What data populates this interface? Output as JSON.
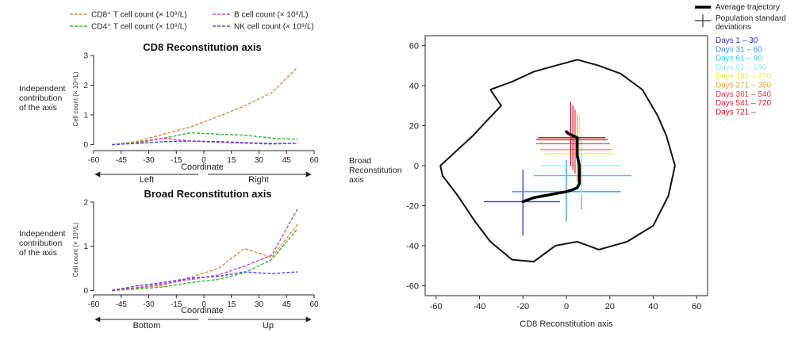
{
  "legend_top": [
    {
      "label": "CD8⁺ T cell count (× 10⁹/L)",
      "color": "#F08A3C"
    },
    {
      "label": "B cell count (× 10⁹/L)",
      "color": "#E040A0"
    },
    {
      "label": "CD4⁺ T cell count (× 10⁹/L)",
      "color": "#33BB33"
    },
    {
      "label": "NK cell count (× 10⁹/L)",
      "color": "#4A4AE0"
    }
  ],
  "side_label": "Independent contribution of the axis",
  "chart_data": [
    {
      "type": "line",
      "title": "CD8  Reconstitution axis",
      "xlabel": "Coordinate",
      "ylabel": "Cell count (× 10⁹/L)",
      "xlim": [
        -60,
        60
      ],
      "ylim": [
        -0.2,
        3
      ],
      "xticks": [
        -60,
        -45,
        -30,
        -15,
        0,
        15,
        30,
        45,
        60
      ],
      "yticks": [
        0,
        1,
        2,
        3
      ],
      "x": [
        -50,
        -37,
        -22,
        -7,
        8,
        22,
        37,
        51
      ],
      "series": [
        {
          "name": "CD8⁺ T cell count (× 10⁹/L)",
          "color": "#F08A3C",
          "values": [
            0.0,
            0.1,
            0.35,
            0.6,
            0.95,
            1.3,
            1.75,
            2.6
          ]
        },
        {
          "name": "CD4⁺ T cell count (× 10⁹/L)",
          "color": "#33BB33",
          "values": [
            0.0,
            0.08,
            0.22,
            0.4,
            0.35,
            0.32,
            0.22,
            0.18
          ]
        },
        {
          "name": "B cell count (× 10⁹/L)",
          "color": "#E040A0",
          "values": [
            0.0,
            0.05,
            0.22,
            0.12,
            0.08,
            0.05,
            0.02,
            0.05
          ]
        },
        {
          "name": "NK cell count (× 10⁹/L)",
          "color": "#4A4AE0",
          "values": [
            0.0,
            0.04,
            0.1,
            0.12,
            0.1,
            0.07,
            0.04,
            0.05
          ]
        }
      ],
      "direction_left": "Left",
      "direction_right": "Right"
    },
    {
      "type": "line",
      "title": "Broad Reconstitution axis",
      "xlabel": "Coordinate",
      "ylabel": "Cell count (× 10⁹/L)",
      "xlim": [
        -60,
        60
      ],
      "ylim": [
        -0.1,
        2
      ],
      "xticks": [
        -60,
        -45,
        -30,
        -15,
        0,
        15,
        30,
        45,
        60
      ],
      "yticks": [
        0,
        1,
        2
      ],
      "x": [
        -50,
        -37,
        -22,
        -7,
        8,
        22,
        37,
        51
      ],
      "series": [
        {
          "name": "CD8⁺ T cell count (× 10⁹/L)",
          "color": "#F08A3C",
          "values": [
            0.0,
            0.05,
            0.12,
            0.3,
            0.5,
            0.95,
            0.75,
            1.5
          ]
        },
        {
          "name": "CD4⁺ T cell count (× 10⁹/L)",
          "color": "#33BB33",
          "values": [
            0.0,
            0.03,
            0.08,
            0.18,
            0.25,
            0.4,
            0.7,
            1.4
          ]
        },
        {
          "name": "B cell count (× 10⁹/L)",
          "color": "#E040A0",
          "values": [
            0.0,
            0.06,
            0.15,
            0.25,
            0.35,
            0.55,
            0.8,
            1.85
          ]
        },
        {
          "name": "NK cell count (× 10⁹/L)",
          "color": "#4A4AE0",
          "values": [
            0.0,
            0.1,
            0.18,
            0.28,
            0.32,
            0.42,
            0.38,
            0.42
          ]
        }
      ],
      "direction_left": "Bottom",
      "direction_right": "Up"
    },
    {
      "type": "scatter",
      "xlabel": "CD8 Reconstitution axis",
      "ylabel": "Broad Reconstitution axis",
      "xlim": [
        -65,
        65
      ],
      "ylim": [
        -65,
        65
      ],
      "xticks": [
        -60,
        -40,
        -20,
        0,
        20,
        40,
        60
      ],
      "yticks": [
        -60,
        -40,
        -20,
        0,
        20,
        40,
        60
      ],
      "legend_average": "Average trajectory",
      "legend_sd": "Population standard deviations",
      "outline": [
        [
          -35,
          38
        ],
        [
          -25,
          42
        ],
        [
          -15,
          47
        ],
        [
          -5,
          50
        ],
        [
          5,
          53
        ],
        [
          15,
          50
        ],
        [
          25,
          46
        ],
        [
          35,
          38
        ],
        [
          42,
          25
        ],
        [
          46,
          15
        ],
        [
          50,
          0
        ],
        [
          47,
          -15
        ],
        [
          40,
          -30
        ],
        [
          28,
          -38
        ],
        [
          15,
          -42
        ],
        [
          5,
          -38
        ],
        [
          -5,
          -40
        ],
        [
          -15,
          -48
        ],
        [
          -25,
          -47
        ],
        [
          -35,
          -38
        ],
        [
          -42,
          -28
        ],
        [
          -50,
          -15
        ],
        [
          -57,
          -5
        ],
        [
          -58,
          0
        ],
        [
          -50,
          8
        ],
        [
          -43,
          15
        ],
        [
          -37,
          22
        ],
        [
          -30,
          30
        ],
        [
          -35,
          38
        ]
      ],
      "trajectory": [
        [
          -20,
          -18
        ],
        [
          -15,
          -16
        ],
        [
          -10,
          -15
        ],
        [
          -5,
          -14
        ],
        [
          0,
          -13
        ],
        [
          3,
          -12
        ],
        [
          5,
          -11
        ],
        [
          6,
          -9
        ],
        [
          6,
          -5
        ],
        [
          6,
          0
        ],
        [
          5,
          5
        ],
        [
          5,
          10
        ],
        [
          5,
          14
        ],
        [
          3,
          15
        ],
        [
          1,
          16
        ],
        [
          0,
          17
        ]
      ],
      "periods": [
        {
          "label": "Days 1 – 30",
          "color": "#3333CC",
          "x": -20,
          "y": -18,
          "xlo": -38,
          "xhi": -3,
          "ylo": -35,
          "yhi": -2
        },
        {
          "label": "Days 31 – 60",
          "color": "#3399EE",
          "x": 0,
          "y": -13,
          "xlo": -25,
          "xhi": 25,
          "ylo": -28,
          "yhi": 3
        },
        {
          "label": "Days 61 – 90",
          "color": "#33CCEE",
          "x": 7,
          "y": -5,
          "xlo": -15,
          "xhi": 30,
          "ylo": -22,
          "yhi": 12
        },
        {
          "label": "Days 91 – 180",
          "color": "#99EEEE",
          "x": 7,
          "y": 0,
          "xlo": -12,
          "xhi": 26,
          "ylo": -15,
          "yhi": 16
        },
        {
          "label": "Days 181 – 270",
          "color": "#EEEE44",
          "x": 6,
          "y": 6,
          "xlo": -10,
          "xhi": 22,
          "ylo": -6,
          "yhi": 25
        },
        {
          "label": "Days 271 – 360",
          "color": "#F0A030",
          "x": 5,
          "y": 8,
          "xlo": -12,
          "xhi": 21,
          "ylo": -8,
          "yhi": 26
        },
        {
          "label": "Days 361 – 540",
          "color": "#E04040",
          "x": 4,
          "y": 11,
          "xlo": -14,
          "xhi": 20,
          "ylo": -4,
          "yhi": 28
        },
        {
          "label": "Days 541 – 720",
          "color": "#D02030",
          "x": 3,
          "y": 13,
          "xlo": -14,
          "xhi": 19,
          "ylo": -2,
          "yhi": 30
        },
        {
          "label": "Days 721 –",
          "color": "#CC1020",
          "x": 2,
          "y": 14,
          "xlo": -13,
          "xhi": 18,
          "ylo": 0,
          "yhi": 32
        }
      ]
    }
  ]
}
